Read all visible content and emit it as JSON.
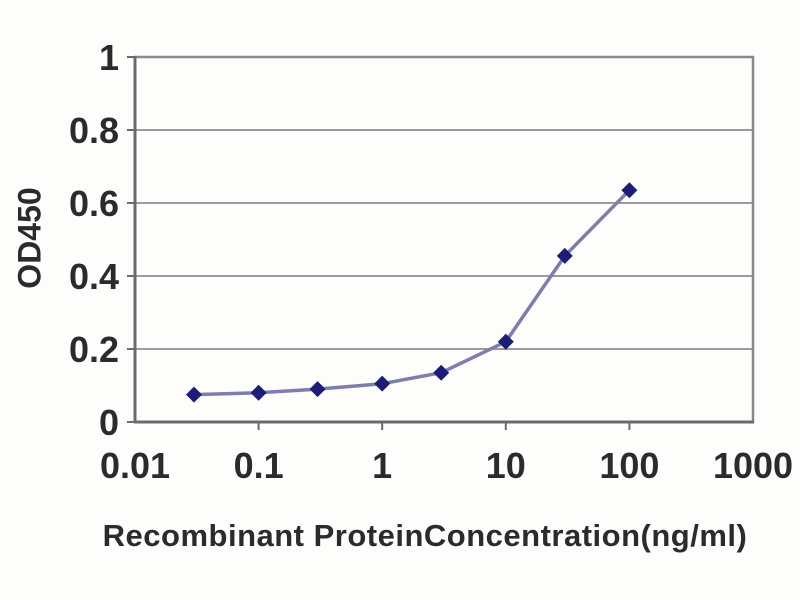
{
  "chart_data": {
    "type": "line",
    "title": "",
    "xlabel": "Recombinant ProteinConcentration(ng/ml)",
    "ylabel": "OD450",
    "x_scale": "log",
    "y_scale": "linear",
    "x": [
      0.03,
      0.1,
      0.3,
      1,
      3,
      10,
      30,
      100
    ],
    "y": [
      0.075,
      0.08,
      0.09,
      0.105,
      0.135,
      0.22,
      0.455,
      0.635
    ],
    "xlim": [
      0.01,
      1000
    ],
    "ylim": [
      0,
      1
    ],
    "x_ticks": [
      0.01,
      0.1,
      1,
      10,
      100,
      1000
    ],
    "x_tick_labels": [
      "0.01",
      "0.1",
      "1",
      "10",
      "100",
      "1000"
    ],
    "y_ticks": [
      0,
      0.2,
      0.4,
      0.6,
      0.8,
      1
    ],
    "y_tick_labels": [
      "0",
      "0.2",
      "0.4",
      "0.6",
      "0.8",
      "1"
    ],
    "grid": "horizontal",
    "legend": "none",
    "marker": "diamond",
    "colors": {
      "line": "#7e7eae",
      "marker": "#1d1d78",
      "grid": "#9b9b9b",
      "frame": "#8a8a8a",
      "axis": "#6a6a6a",
      "text": "#2b2b2b",
      "background": "#fdfdfb"
    }
  }
}
